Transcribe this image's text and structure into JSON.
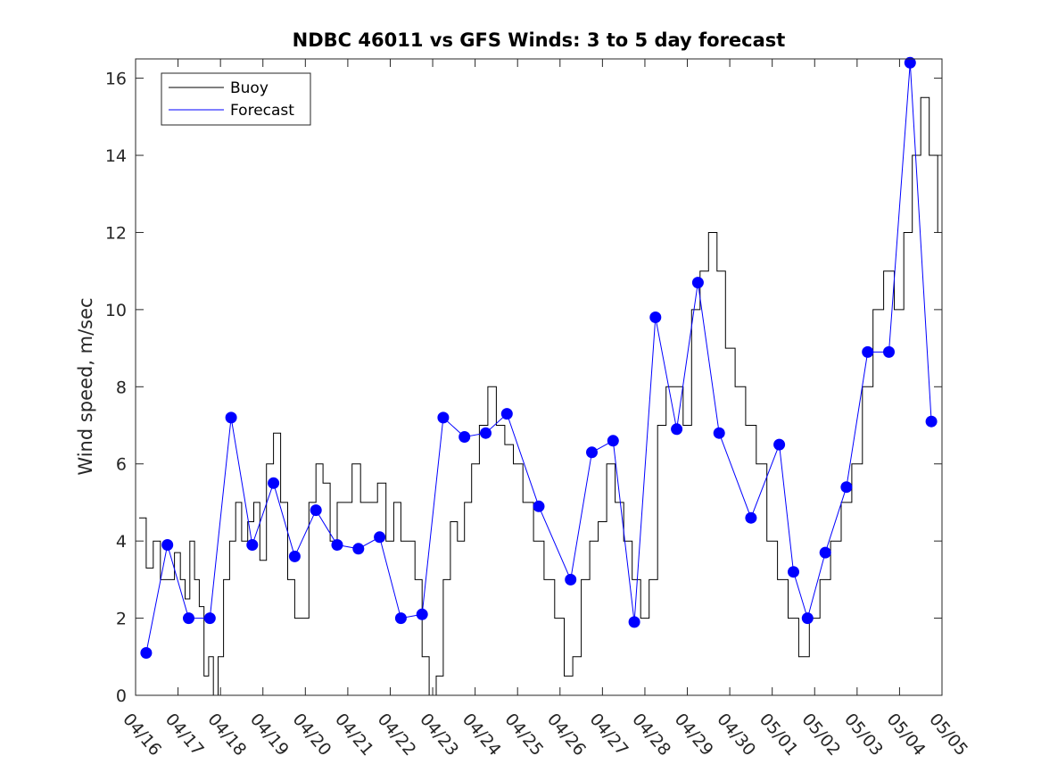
{
  "chart_data": {
    "type": "line",
    "title": "NDBC 46011 vs GFS Winds: 3 to 5 day forecast",
    "xlabel": "",
    "ylabel": "Wind speed, m/sec",
    "x_tick_labels": [
      "04/16",
      "04/17",
      "04/18",
      "04/19",
      "04/20",
      "04/21",
      "04/22",
      "04/23",
      "04/24",
      "04/25",
      "04/26",
      "04/27",
      "04/28",
      "04/29",
      "04/30",
      "05/01",
      "05/02",
      "05/03",
      "05/04",
      "05/05"
    ],
    "y_ticks": [
      0,
      2,
      4,
      6,
      8,
      10,
      12,
      14,
      16
    ],
    "ylim": [
      0,
      16.5
    ],
    "grid": false,
    "legend": {
      "position": "top-left",
      "entries": [
        {
          "name": "Buoy",
          "color": "#000000"
        },
        {
          "name": "Forecast",
          "color": "#0000ff"
        }
      ]
    },
    "series": [
      {
        "name": "Buoy",
        "color": "#000000",
        "points": [
          [
            "04/16",
            4.6
          ],
          [
            "04/16",
            3.3
          ],
          [
            "04/16",
            4.0
          ],
          [
            "04/16",
            3.0
          ],
          [
            "04/16",
            3.0
          ],
          [
            "04/16",
            3.7
          ],
          [
            "04/17",
            3.0
          ],
          [
            "04/17",
            2.5
          ],
          [
            "04/17",
            4.0
          ],
          [
            "04/17",
            3.0
          ],
          [
            "04/17",
            2.3
          ],
          [
            "04/17",
            0.5
          ],
          [
            "04/17",
            1.0
          ],
          [
            "04/17",
            0.0
          ],
          [
            "04/17",
            1.0
          ],
          [
            "04/18",
            3.0
          ],
          [
            "04/18",
            4.0
          ],
          [
            "04/18",
            5.0
          ],
          [
            "04/18",
            4.0
          ],
          [
            "04/18",
            4.5
          ],
          [
            "04/18",
            5.0
          ],
          [
            "04/18",
            3.5
          ],
          [
            "04/19",
            6.0
          ],
          [
            "04/19",
            6.8
          ],
          [
            "04/19",
            5.0
          ],
          [
            "04/19",
            3.0
          ],
          [
            "04/19",
            2.0
          ],
          [
            "04/19",
            2.0
          ],
          [
            "04/20",
            5.0
          ],
          [
            "04/20",
            6.0
          ],
          [
            "04/20",
            5.5
          ],
          [
            "04/20",
            4.0
          ],
          [
            "04/20",
            5.0
          ],
          [
            "04/20",
            5.0
          ],
          [
            "04/21",
            6.0
          ],
          [
            "04/21",
            5.0
          ],
          [
            "04/21",
            5.0
          ],
          [
            "04/21",
            5.5
          ],
          [
            "04/21",
            4.0
          ],
          [
            "04/22",
            5.0
          ],
          [
            "04/22",
            4.0
          ],
          [
            "04/22",
            4.0
          ],
          [
            "04/22",
            3.0
          ],
          [
            "04/22",
            1.0
          ],
          [
            "04/22",
            0.0
          ],
          [
            "04/23",
            0.5
          ],
          [
            "04/23",
            3.0
          ],
          [
            "04/23",
            4.5
          ],
          [
            "04/23",
            4.0
          ],
          [
            "04/23",
            5.0
          ],
          [
            "04/23",
            6.0
          ],
          [
            "04/24",
            7.0
          ],
          [
            "04/24",
            8.0
          ],
          [
            "04/24",
            7.0
          ],
          [
            "04/24",
            6.5
          ],
          [
            "04/24",
            6.0
          ],
          [
            "04/25",
            5.0
          ],
          [
            "04/25",
            4.0
          ],
          [
            "04/25",
            3.0
          ],
          [
            "04/25",
            2.0
          ],
          [
            "04/26",
            0.5
          ],
          [
            "04/26",
            1.0
          ],
          [
            "04/26",
            3.0
          ],
          [
            "04/26",
            4.0
          ],
          [
            "04/26",
            4.5
          ],
          [
            "04/27",
            6.0
          ],
          [
            "04/27",
            5.0
          ],
          [
            "04/27",
            4.0
          ],
          [
            "04/27",
            3.0
          ],
          [
            "04/27",
            2.0
          ],
          [
            "04/28",
            3.0
          ],
          [
            "04/28",
            7.0
          ],
          [
            "04/28",
            8.0
          ],
          [
            "04/28",
            8.0
          ],
          [
            "04/28",
            7.0
          ],
          [
            "04/29",
            10.0
          ],
          [
            "04/29",
            11.0
          ],
          [
            "04/29",
            12.0
          ],
          [
            "04/29",
            11.0
          ],
          [
            "04/29",
            9.0
          ],
          [
            "04/30",
            8.0
          ],
          [
            "04/30",
            7.0
          ],
          [
            "04/30",
            6.0
          ],
          [
            "04/30",
            4.0
          ],
          [
            "05/01",
            3.0
          ],
          [
            "05/01",
            2.0
          ],
          [
            "05/01",
            1.0
          ],
          [
            "05/01",
            2.0
          ],
          [
            "05/02",
            3.0
          ],
          [
            "05/02",
            4.0
          ],
          [
            "05/02",
            5.0
          ],
          [
            "05/02",
            6.0
          ],
          [
            "05/03",
            8.0
          ],
          [
            "05/03",
            10.0
          ],
          [
            "05/03",
            11.0
          ],
          [
            "05/03",
            10.0
          ],
          [
            "05/04",
            12.0
          ],
          [
            "05/04",
            14.0
          ],
          [
            "05/04",
            15.5
          ],
          [
            "05/04",
            14.0
          ],
          [
            "05/04",
            12.0
          ]
        ]
      },
      {
        "name": "Forecast",
        "color": "#0000ff",
        "points": [
          [
            "04/16",
            1.1
          ],
          [
            "04/16",
            3.9
          ],
          [
            "04/17",
            2.0
          ],
          [
            "04/17",
            2.0
          ],
          [
            "04/18",
            7.2
          ],
          [
            "04/18",
            3.9
          ],
          [
            "04/19",
            5.5
          ],
          [
            "04/19",
            3.6
          ],
          [
            "04/20",
            4.8
          ],
          [
            "04/20",
            3.9
          ],
          [
            "04/21",
            3.8
          ],
          [
            "04/21",
            4.1
          ],
          [
            "04/22",
            2.0
          ],
          [
            "04/22",
            2.1
          ],
          [
            "04/23",
            7.2
          ],
          [
            "04/23",
            6.7
          ],
          [
            "04/24",
            6.8
          ],
          [
            "04/24",
            7.3
          ],
          [
            "04/25",
            4.9
          ],
          [
            "04/26",
            3.0
          ],
          [
            "04/26",
            6.3
          ],
          [
            "04/27",
            6.6
          ],
          [
            "04/27",
            1.9
          ],
          [
            "04/28",
            9.8
          ],
          [
            "04/28",
            6.9
          ],
          [
            "04/29",
            10.7
          ],
          [
            "04/29",
            6.8
          ],
          [
            "04/30",
            4.6
          ],
          [
            "05/01",
            6.5
          ],
          [
            "05/01",
            3.2
          ],
          [
            "05/01",
            2.0
          ],
          [
            "05/02",
            3.7
          ],
          [
            "05/02",
            5.4
          ],
          [
            "05/03",
            8.9
          ],
          [
            "05/03",
            8.9
          ],
          [
            "05/04",
            16.4
          ],
          [
            "05/04",
            7.1
          ]
        ]
      }
    ]
  }
}
